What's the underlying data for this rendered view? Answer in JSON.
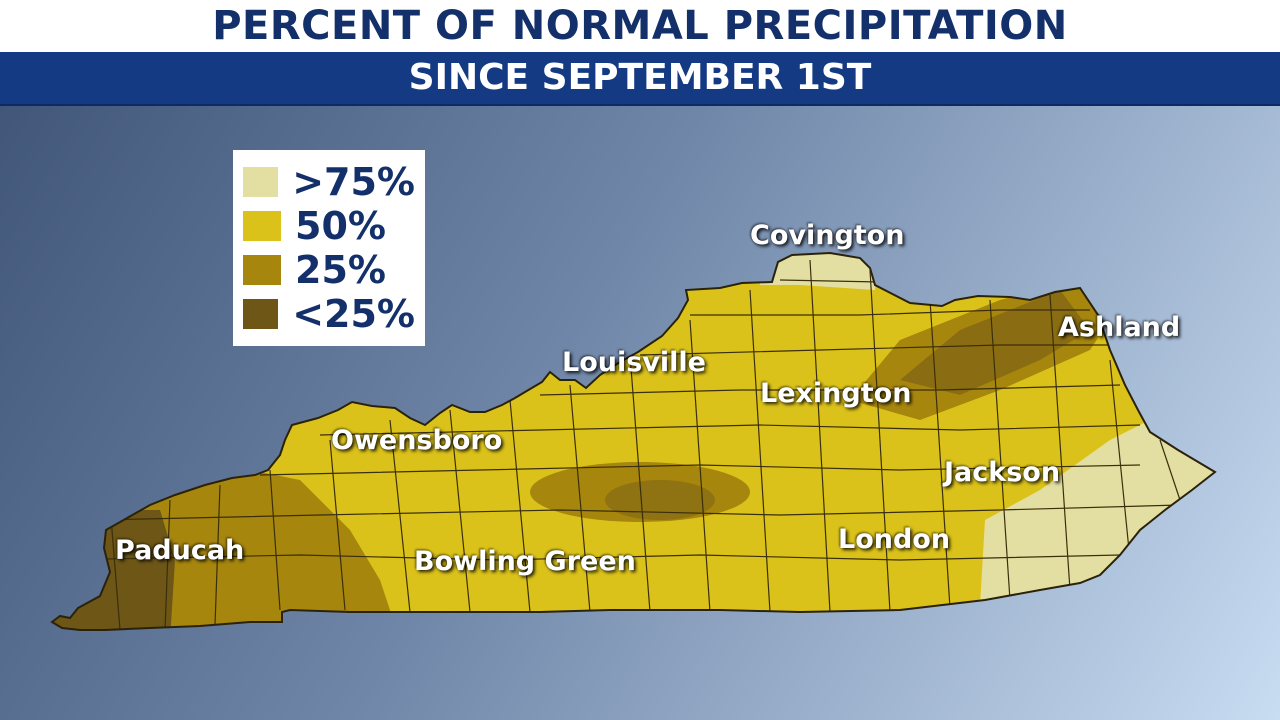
{
  "header": {
    "title": "PERCENT OF NORMAL PRECIPITATION",
    "subtitle": "SINCE SEPTEMBER 1ST"
  },
  "legend": {
    "items": [
      {
        "label": ">75%",
        "color": "#e3dfa3"
      },
      {
        "label": "50%",
        "color": "#dbc21a"
      },
      {
        "label": "25%",
        "color": "#a7860e"
      },
      {
        "label": "<25%",
        "color": "#6d5616"
      }
    ]
  },
  "cities": {
    "covington": "Covington",
    "ashland": "Ashland",
    "louisville": "Louisville",
    "lexington": "Lexington",
    "owensboro": "Owensboro",
    "jackson": "Jackson",
    "paducah": "Paducah",
    "london": "London",
    "bowling_green": "Bowling Green"
  },
  "colors": {
    "title_text": "#13306b",
    "banner": "#133a82",
    "county_lines": "#3b2f0a"
  }
}
